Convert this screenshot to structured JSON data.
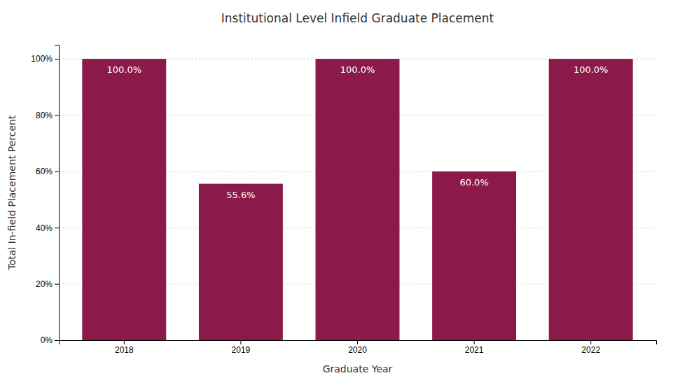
{
  "chart_data": {
    "type": "bar",
    "title": "Institutional Level Infield Graduate Placement",
    "xlabel": "Graduate Year",
    "ylabel": "Total In-field Placement Percent",
    "categories": [
      "2018",
      "2019",
      "2020",
      "2021",
      "2022"
    ],
    "values": [
      100.0,
      55.6,
      100.0,
      60.0,
      100.0
    ],
    "value_labels": [
      "100.0%",
      "55.6%",
      "100.0%",
      "60.0%",
      "100.0%"
    ],
    "data_labels": true,
    "color": "#8B1A4A",
    "ylim": [
      0,
      105
    ],
    "yticks": [
      {
        "value": 0,
        "label": "0%"
      },
      {
        "value": 20,
        "label": "20%"
      },
      {
        "value": 40,
        "label": "40%"
      },
      {
        "value": 60,
        "label": "60%"
      },
      {
        "value": 80,
        "label": "80%"
      },
      {
        "value": 100,
        "label": "100%"
      }
    ],
    "grid": true
  }
}
